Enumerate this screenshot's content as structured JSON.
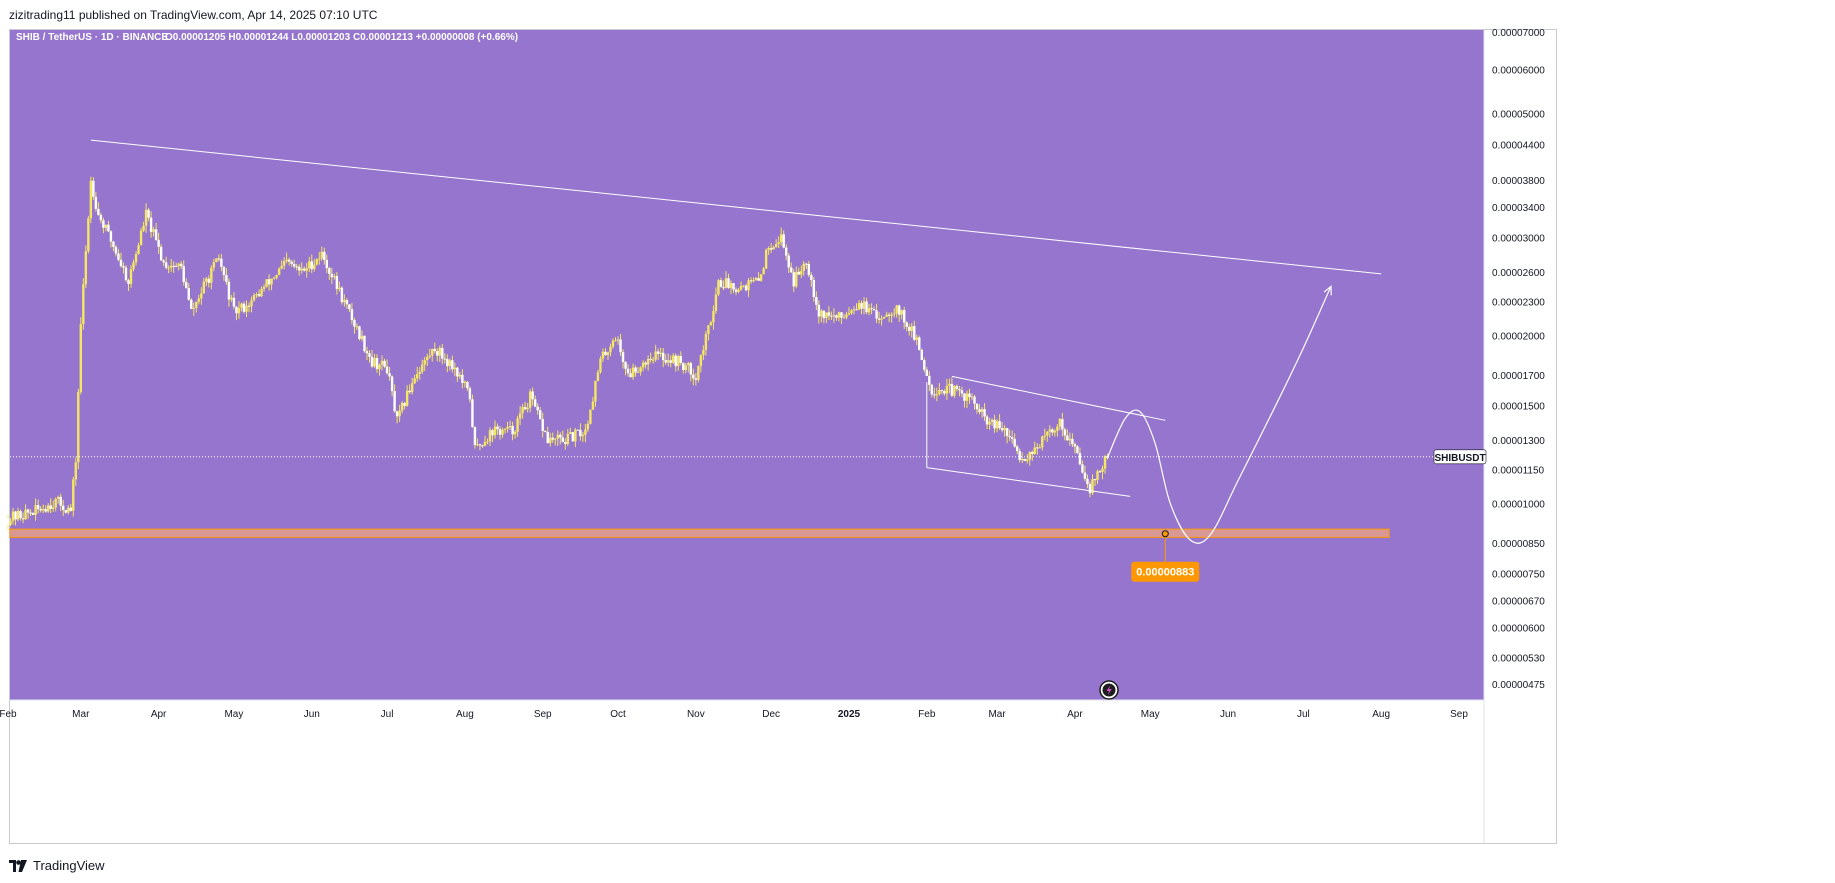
{
  "header": {
    "publish_line": "zizitrading11 published on TradingView.com, Apr 14, 2025 07:10 UTC"
  },
  "footer": {
    "brand": "TradingView"
  },
  "colors": {
    "plot_bg": "#9575cd",
    "candle": "#f5e663",
    "candle_body_alt": "#ffffff",
    "drawing": "#ffffff",
    "support_zone": "#e69f8a",
    "support_border": "#ff9800",
    "price_badge": "#ff9800",
    "axis_text": "#131722"
  },
  "chart_data": {
    "type": "candlestick",
    "symbol_line": "SHIB / TetherUS · 1D · BINANCE",
    "ohlc_readout": "O0.00001205 H0.00001244 L0.00001203 C0.00001213 +0.00000008 (+0.66%)",
    "symbol_label": "SHIBUSDT",
    "last_price": 1.213e-05,
    "y_scale": "log",
    "y_ticks": [
      {
        "value": 7e-05,
        "label": "0.00007000"
      },
      {
        "value": 6e-05,
        "label": "0.00006000"
      },
      {
        "value": 5e-05,
        "label": "0.00005000"
      },
      {
        "value": 4.4e-05,
        "label": "0.00004400"
      },
      {
        "value": 3.8e-05,
        "label": "0.00003800"
      },
      {
        "value": 3.4e-05,
        "label": "0.00003400"
      },
      {
        "value": 3e-05,
        "label": "0.00003000"
      },
      {
        "value": 2.6e-05,
        "label": "0.00002600"
      },
      {
        "value": 2.3e-05,
        "label": "0.00002300"
      },
      {
        "value": 2e-05,
        "label": "0.00002000"
      },
      {
        "value": 1.7e-05,
        "label": "0.00001700"
      },
      {
        "value": 1.5e-05,
        "label": "0.00001500"
      },
      {
        "value": 1.3e-05,
        "label": "0.00001300"
      },
      {
        "value": 1.15e-05,
        "label": "0.00001150"
      },
      {
        "value": 1e-05,
        "label": "0.00001000"
      },
      {
        "value": 8.5e-06,
        "label": "0.00000850"
      },
      {
        "value": 7.5e-06,
        "label": "0.00000750"
      },
      {
        "value": 6.7e-06,
        "label": "0.00000670"
      },
      {
        "value": 6e-06,
        "label": "0.00000600"
      },
      {
        "value": 5.3e-06,
        "label": "0.00000530"
      },
      {
        "value": 4.75e-06,
        "label": "0.00000475"
      }
    ],
    "x_ticks": [
      {
        "date": "2024-02-01",
        "label": "Feb"
      },
      {
        "date": "2024-03-01",
        "label": "Mar"
      },
      {
        "date": "2024-04-01",
        "label": "Apr"
      },
      {
        "date": "2024-05-01",
        "label": "May"
      },
      {
        "date": "2024-06-01",
        "label": "Jun"
      },
      {
        "date": "2024-07-01",
        "label": "Jul"
      },
      {
        "date": "2024-08-01",
        "label": "Aug"
      },
      {
        "date": "2024-09-01",
        "label": "Sep"
      },
      {
        "date": "2024-10-01",
        "label": "Oct"
      },
      {
        "date": "2024-11-01",
        "label": "Nov"
      },
      {
        "date": "2024-12-01",
        "label": "Dec"
      },
      {
        "date": "2025-01-01",
        "label": "2025"
      },
      {
        "date": "2025-02-01",
        "label": "Feb"
      },
      {
        "date": "2025-03-01",
        "label": "Mar"
      },
      {
        "date": "2025-04-01",
        "label": "Apr"
      },
      {
        "date": "2025-05-01",
        "label": "May"
      },
      {
        "date": "2025-06-01",
        "label": "Jun"
      },
      {
        "date": "2025-07-01",
        "label": "Jul"
      },
      {
        "date": "2025-08-01",
        "label": "Aug"
      },
      {
        "date": "2025-09-01",
        "label": "Sep"
      }
    ],
    "price_path": [
      [
        "2024-02-01",
        9.4e-06
      ],
      [
        "2024-02-12",
        9.7e-06
      ],
      [
        "2024-02-20",
        1.01e-05
      ],
      [
        "2024-02-26",
        9.7e-06
      ],
      [
        "2024-02-28",
        1.2e-05
      ],
      [
        "2024-03-01",
        2.1e-05
      ],
      [
        "2024-03-05",
        3.8e-05
      ],
      [
        "2024-03-08",
        3.3e-05
      ],
      [
        "2024-03-14",
        2.9e-05
      ],
      [
        "2024-03-20",
        2.5e-05
      ],
      [
        "2024-03-27",
        3.3e-05
      ],
      [
        "2024-04-03",
        2.7e-05
      ],
      [
        "2024-04-10",
        2.65e-05
      ],
      [
        "2024-04-14",
        2.2e-05
      ],
      [
        "2024-04-20",
        2.5e-05
      ],
      [
        "2024-04-25",
        2.75e-05
      ],
      [
        "2024-05-01",
        2.2e-05
      ],
      [
        "2024-05-08",
        2.3e-05
      ],
      [
        "2024-05-15",
        2.5e-05
      ],
      [
        "2024-05-22",
        2.7e-05
      ],
      [
        "2024-05-28",
        2.6e-05
      ],
      [
        "2024-06-05",
        2.8e-05
      ],
      [
        "2024-06-12",
        2.4e-05
      ],
      [
        "2024-06-18",
        2.1e-05
      ],
      [
        "2024-06-25",
        1.8e-05
      ],
      [
        "2024-07-01",
        1.75e-05
      ],
      [
        "2024-07-05",
        1.4e-05
      ],
      [
        "2024-07-12",
        1.7e-05
      ],
      [
        "2024-07-20",
        1.9e-05
      ],
      [
        "2024-07-28",
        1.75e-05
      ],
      [
        "2024-08-03",
        1.55e-05
      ],
      [
        "2024-08-05",
        1.25e-05
      ],
      [
        "2024-08-12",
        1.35e-05
      ],
      [
        "2024-08-20",
        1.35e-05
      ],
      [
        "2024-08-27",
        1.55e-05
      ],
      [
        "2024-09-03",
        1.3e-05
      ],
      [
        "2024-09-10",
        1.3e-05
      ],
      [
        "2024-09-18",
        1.35e-05
      ],
      [
        "2024-09-24",
        1.8e-05
      ],
      [
        "2024-09-30",
        2e-05
      ],
      [
        "2024-10-05",
        1.7e-05
      ],
      [
        "2024-10-15",
        1.85e-05
      ],
      [
        "2024-10-25",
        1.8e-05
      ],
      [
        "2024-11-01",
        1.7e-05
      ],
      [
        "2024-11-06",
        2.05e-05
      ],
      [
        "2024-11-10",
        2.5e-05
      ],
      [
        "2024-11-18",
        2.45e-05
      ],
      [
        "2024-11-26",
        2.5e-05
      ],
      [
        "2024-11-30",
        2.9e-05
      ],
      [
        "2024-12-05",
        3e-05
      ],
      [
        "2024-12-10",
        2.5e-05
      ],
      [
        "2024-12-15",
        2.75e-05
      ],
      [
        "2024-12-20",
        2.2e-05
      ],
      [
        "2024-12-28",
        2.15e-05
      ],
      [
        "2025-01-05",
        2.3e-05
      ],
      [
        "2025-01-12",
        2.15e-05
      ],
      [
        "2025-01-20",
        2.25e-05
      ],
      [
        "2025-01-27",
        2e-05
      ],
      [
        "2025-02-03",
        1.6e-05
      ],
      [
        "2025-02-10",
        1.6e-05
      ],
      [
        "2025-02-18",
        1.55e-05
      ],
      [
        "2025-02-25",
        1.4e-05
      ],
      [
        "2025-03-04",
        1.35e-05
      ],
      [
        "2025-03-11",
        1.2e-05
      ],
      [
        "2025-03-18",
        1.28e-05
      ],
      [
        "2025-03-26",
        1.4e-05
      ],
      [
        "2025-04-01",
        1.25e-05
      ],
      [
        "2025-04-07",
        1.07e-05
      ],
      [
        "2025-04-14",
        1.21e-05
      ]
    ],
    "drawings": {
      "descending_trendline": {
        "points": [
          [
            "2024-03-05",
            4.48e-05
          ],
          [
            "2025-08-01",
            2.58e-05
          ]
        ]
      },
      "channel_upper": {
        "points": [
          [
            "2025-02-11",
            1.69e-05
          ],
          [
            "2025-05-07",
            1.41e-05
          ]
        ]
      },
      "channel_lower": {
        "points": [
          [
            "2025-02-01",
            1.16e-05
          ],
          [
            "2025-04-23",
            1.03e-05
          ]
        ]
      },
      "channel_left_edge": {
        "points": [
          [
            "2025-02-01",
            1.16e-05
          ],
          [
            "2025-02-01",
            1.65e-05
          ]
        ]
      },
      "projection_path": [
        [
          "2025-04-14",
          1.21e-05
        ],
        [
          "2025-04-21",
          1.42e-05
        ],
        [
          "2025-04-27",
          1.46e-05
        ],
        [
          "2025-05-03",
          1.28e-05
        ],
        [
          "2025-05-09",
          1e-05
        ],
        [
          "2025-05-17",
          8.6e-06
        ],
        [
          "2025-05-25",
          8.8e-06
        ],
        [
          "2025-06-05",
          1.1e-05
        ],
        [
          "2025-06-20",
          1.5e-05
        ],
        [
          "2025-07-01",
          1.9e-05
        ],
        [
          "2025-07-12",
          2.45e-05
        ]
      ],
      "support_zone": {
        "top": 9e-06,
        "bottom": 8.7e-06,
        "end": "2025-08-01"
      },
      "target_point": {
        "date": "2025-05-07",
        "value": 8.83e-06
      }
    },
    "price_badge_label": "0.00000883",
    "grid": false,
    "legend": "none"
  }
}
